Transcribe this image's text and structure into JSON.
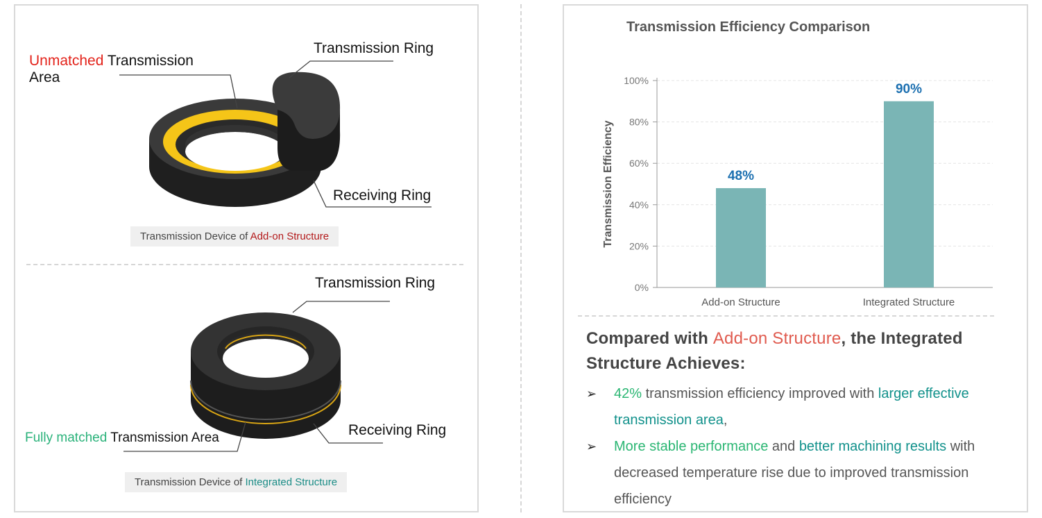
{
  "left": {
    "top_diagram": {
      "label_unmatched_word": "Unmatched",
      "label_unmatched_rest_line1": "Transmission",
      "label_unmatched_rest_line2": "Area",
      "label_transmission_ring": "Transmission Ring",
      "label_receiving_ring": "Receiving Ring",
      "caption_prefix": "Transmission Device of",
      "caption_highlight": "Add-on Structure"
    },
    "bottom_diagram": {
      "label_transmission_ring": "Transmission Ring",
      "label_receiving_ring": "Receiving Ring",
      "label_fully_matched_word": "Fully matched",
      "label_fully_matched_rest": "Transmission Area",
      "caption_prefix": "Transmission Device of",
      "caption_highlight": "Integrated Structure"
    },
    "colors": {
      "ring_dark": "#2e2e2e",
      "ring_side": "#1e1e1e",
      "transmission_area": "#f5c518"
    }
  },
  "right": {
    "chart_title": "Transmission Efficiency Comparison",
    "chart_data": {
      "type": "bar",
      "title": "Transmission Efficiency Comparison",
      "categories": [
        "Add-on Structure",
        "Integrated Structure"
      ],
      "values": [
        48,
        90
      ],
      "value_labels": [
        "48%",
        "90%"
      ],
      "ylabel": "Transmission Efficiency",
      "xlabel": "",
      "ylim": [
        0,
        100
      ],
      "yticks": [
        0,
        20,
        40,
        60,
        80,
        100
      ],
      "ytick_labels": [
        "0%",
        "20%",
        "40%",
        "60%",
        "80%",
        "100%"
      ],
      "grid": true,
      "bar_color": "#7ab5b5",
      "label_color": "#1b6fb0"
    },
    "summary": {
      "head_part1": "Compared with",
      "head_accent": "Add-on Structure",
      "head_part2": ", the Integrated Structure Achieves:",
      "bullet1_hl1": "42%",
      "bullet1_mid": " transmission efficiency improved with ",
      "bullet1_hl2": "larger effective transmission area",
      "bullet1_end": ",",
      "bullet2_hl1": "More stable performance",
      "bullet2_mid": " and ",
      "bullet2_hl2": "better machining results",
      "bullet2_end": " with decreased temperature rise due to improved transmission efficiency",
      "bullet_icon": "arrowhead-bullet-icon"
    }
  }
}
